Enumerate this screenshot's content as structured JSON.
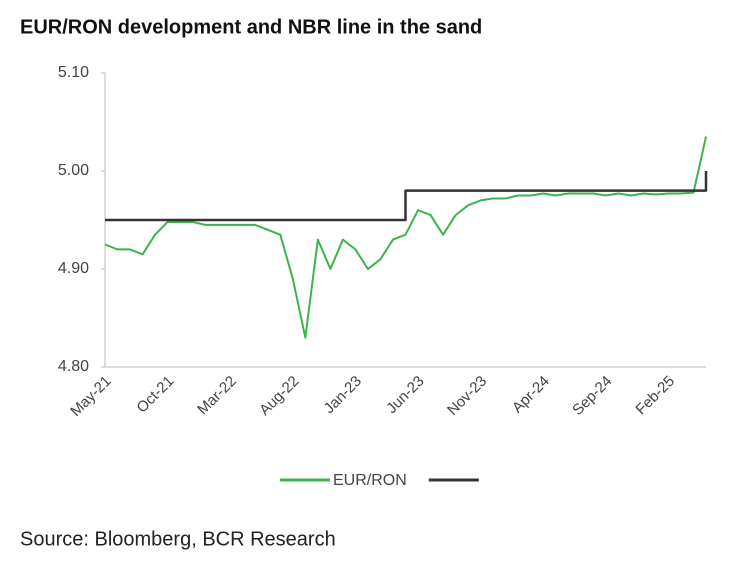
{
  "chart_data": {
    "type": "line",
    "title": "EUR/RON development and NBR line in the sand",
    "source": "Source: Bloomberg, BCR Research",
    "categories": [
      "May-21",
      null,
      null,
      null,
      null,
      "Oct-21",
      null,
      null,
      null,
      null,
      "Mar-22",
      null,
      null,
      null,
      null,
      "Aug-22",
      null,
      null,
      null,
      null,
      "Jan-23",
      null,
      null,
      null,
      null,
      "Jun-23",
      null,
      null,
      null,
      null,
      "Nov-23",
      null,
      null,
      null,
      null,
      "Apr-24",
      null,
      null,
      null,
      null,
      "Sep-24",
      null,
      null,
      null,
      null,
      "Feb-25",
      null,
      null,
      null
    ],
    "series": [
      {
        "name": "EUR/RON",
        "color": "#3cb44b",
        "values": [
          4.925,
          4.92,
          4.92,
          4.915,
          4.935,
          4.948,
          4.948,
          4.948,
          4.945,
          4.945,
          4.945,
          4.945,
          4.945,
          4.94,
          4.935,
          4.89,
          4.83,
          4.93,
          4.9,
          4.93,
          4.92,
          4.9,
          4.91,
          4.93,
          4.935,
          4.96,
          4.955,
          4.935,
          4.955,
          4.965,
          4.97,
          4.972,
          4.972,
          4.975,
          4.975,
          4.977,
          4.975,
          4.977,
          4.977,
          4.977,
          4.975,
          4.977,
          4.975,
          4.977,
          4.976,
          4.977,
          4.977,
          4.978,
          5.035
        ]
      },
      {
        "color": "#333333",
        "step": true,
        "values": [
          4.95,
          4.95,
          4.95,
          4.95,
          4.95,
          4.95,
          4.95,
          4.95,
          4.95,
          4.95,
          4.95,
          4.95,
          4.95,
          4.95,
          4.95,
          4.95,
          4.95,
          4.95,
          4.95,
          4.95,
          4.95,
          4.95,
          4.95,
          4.95,
          4.98,
          4.98,
          4.98,
          4.98,
          4.98,
          4.98,
          4.98,
          4.98,
          4.98,
          4.98,
          4.98,
          4.98,
          4.98,
          4.98,
          4.98,
          4.98,
          4.98,
          4.98,
          4.98,
          4.98,
          4.98,
          4.98,
          4.98,
          4.98,
          5.0
        ]
      }
    ],
    "ylim": [
      4.8,
      5.1
    ],
    "yticks": [
      {
        "value": 4.8,
        "label": "4.80"
      },
      {
        "value": 4.9,
        "label": "4.90"
      },
      {
        "value": 5.0,
        "label": "5.00"
      },
      {
        "value": 5.1,
        "label": "5.10"
      }
    ],
    "grid": false
  }
}
